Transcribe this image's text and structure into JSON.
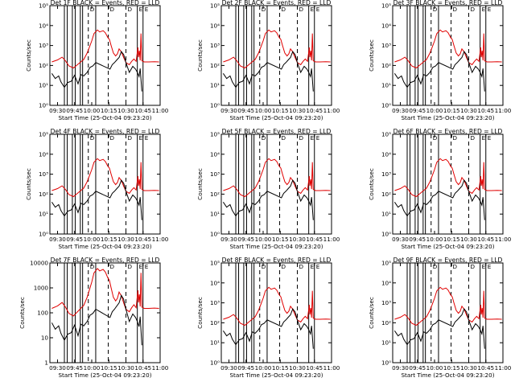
{
  "chart_data": {
    "type": "line",
    "grid_layout": "3x3",
    "shared": {
      "xlabel": "Start Time (25-Oct-04 09:23:20)",
      "ylabel": "Counts/sec",
      "x_ticks": [
        "09:30",
        "09:45",
        "10:00",
        "10:15",
        "10:30",
        "10:45",
        "11:00"
      ],
      "x_tick_minutes": [
        30,
        45,
        60,
        75,
        90,
        105,
        120
      ],
      "xlim_minutes_after_0900": [
        23.3,
        120
      ],
      "yscale": "log",
      "log_ylim": [
        1,
        100000
      ],
      "log_yticks": [
        "10⁰",
        "10¹",
        "10²",
        "10³",
        "10⁴",
        "10⁵"
      ],
      "decimal_ylim": [
        1,
        10000
      ],
      "decimal_yticks": [
        "1",
        "10",
        "100",
        "1000",
        "10000"
      ],
      "series": [
        {
          "name": "Events",
          "color": "#000000"
        },
        {
          "name": "LLD",
          "color": "#e00000"
        }
      ],
      "solid_markers_minutes": [
        36,
        38.5,
        43,
        45.5,
        50,
        52,
        63.5,
        100,
        105
      ],
      "dashed_markers_minutes": [
        57,
        74.5,
        90
      ],
      "marker_top_labels": [
        "D",
        "D",
        "D",
        "E",
        "E"
      ],
      "lld_minutes": [
        25,
        30,
        34,
        37,
        40,
        44,
        49,
        53,
        56,
        58,
        60,
        62,
        65,
        67,
        70,
        72,
        74,
        75.5,
        77,
        79,
        81,
        82.5,
        84,
        86,
        88,
        90,
        93,
        95,
        97,
        99,
        100.5,
        101,
        101.8,
        102.5,
        103.2,
        104,
        106,
        110,
        115,
        119
      ],
      "lld_values": [
        150,
        190,
        260,
        170,
        95,
        75,
        130,
        200,
        420,
        850,
        1700,
        4000,
        6000,
        4800,
        5500,
        4300,
        2600,
        2000,
        1000,
        420,
        300,
        380,
        680,
        480,
        250,
        140,
        110,
        160,
        210,
        160,
        800,
        260,
        550,
        180,
        4000,
        170,
        150,
        150,
        155,
        150
      ],
      "events_minutes": [
        25,
        28,
        31,
        33,
        36,
        39,
        42,
        45,
        48,
        50.5,
        53,
        56,
        58.5,
        61,
        63.5,
        76,
        78,
        80,
        82,
        84,
        86,
        88,
        90,
        93,
        96,
        98.5,
        100,
        101.5,
        102.5,
        103.2,
        104
      ],
      "events_values": [
        40,
        22,
        30,
        15,
        8,
        14,
        16,
        32,
        12,
        35,
        30,
        45,
        80,
        95,
        140,
        65,
        110,
        140,
        190,
        250,
        500,
        350,
        140,
        45,
        90,
        65,
        45,
        28,
        70,
        20,
        5
      ]
    },
    "panels": [
      {
        "title": "Det 1F BLACK = Events, RED = LLD",
        "y_tick_style": "log"
      },
      {
        "title": "Det 2F BLACK = Events, RED = LLD",
        "y_tick_style": "log"
      },
      {
        "title": "Det 3F BLACK = Events, RED = LLD",
        "y_tick_style": "log"
      },
      {
        "title": "Det 4F BLACK = Events, RED = LLD",
        "y_tick_style": "log"
      },
      {
        "title": "Det 5F BLACK = Events, RED = LLD",
        "y_tick_style": "log"
      },
      {
        "title": "Det 6F BLACK = Events, RED = LLD",
        "y_tick_style": "log"
      },
      {
        "title": "Det 7F BLACK = Events, RED = LLD",
        "y_tick_style": "decimal"
      },
      {
        "title": "Det 8F BLACK = Events, RED = LLD",
        "y_tick_style": "log"
      },
      {
        "title": "Det 9F BLACK = Events, RED = LLD",
        "y_tick_style": "log"
      }
    ]
  }
}
